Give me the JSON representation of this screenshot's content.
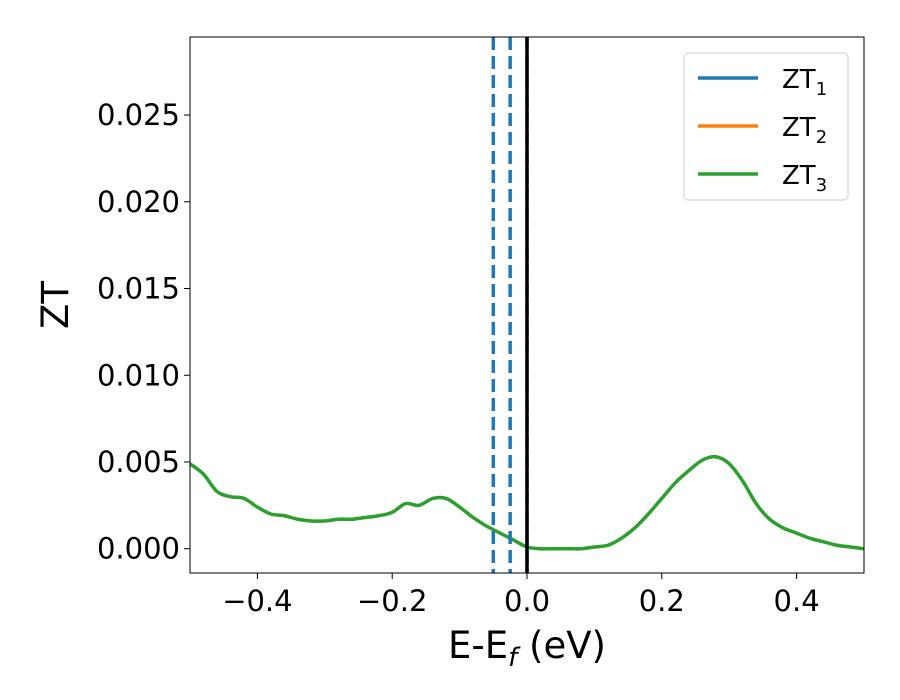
{
  "chart_data": {
    "type": "line",
    "xlabel": {
      "main": "E-E",
      "sub": "f",
      "suffix": " (eV)"
    },
    "ylabel": "ZT",
    "xlim": [
      -0.5,
      0.5
    ],
    "ylim": [
      -0.0014,
      0.0295
    ],
    "xticks": [
      -0.4,
      -0.2,
      0.0,
      0.2,
      0.4
    ],
    "xtick_labels": [
      "−0.4",
      "−0.2",
      "0.0",
      "0.2",
      "0.4"
    ],
    "yticks": [
      0.0,
      0.005,
      0.01,
      0.015,
      0.02,
      0.025
    ],
    "ytick_labels": [
      "0.000",
      "0.005",
      "0.010",
      "0.015",
      "0.020",
      "0.025"
    ],
    "grid": false,
    "legend_position": "top-right",
    "colors": {
      "s1": "#1f77b4",
      "s2": "#ff7f0e",
      "s3": "#2ca02c",
      "fermi": "#000000"
    },
    "vlines": [
      {
        "x": -0.05,
        "style": "dashed",
        "color": "#1f77b4"
      },
      {
        "x": -0.025,
        "style": "dashed",
        "color": "#1f77b4"
      },
      {
        "x": 0.0,
        "style": "dashed",
        "color": "#1f77b4"
      },
      {
        "x": 0.0,
        "style": "solid",
        "color": "#000000"
      }
    ],
    "series": [
      {
        "name": "ZT",
        "sub": "1",
        "color": "#1f77b4",
        "x": [],
        "y": []
      },
      {
        "name": "ZT",
        "sub": "2",
        "color": "#ff7f0e",
        "x": [],
        "y": []
      },
      {
        "name": "ZT",
        "sub": "3",
        "color": "#2ca02c",
        "x": [
          -0.5,
          -0.48,
          -0.46,
          -0.44,
          -0.42,
          -0.4,
          -0.38,
          -0.36,
          -0.34,
          -0.32,
          -0.3,
          -0.28,
          -0.26,
          -0.24,
          -0.22,
          -0.2,
          -0.18,
          -0.16,
          -0.14,
          -0.12,
          -0.1,
          -0.08,
          -0.06,
          -0.04,
          -0.02,
          0.0,
          0.02,
          0.04,
          0.06,
          0.08,
          0.1,
          0.12,
          0.14,
          0.16,
          0.18,
          0.2,
          0.22,
          0.24,
          0.26,
          0.28,
          0.3,
          0.32,
          0.34,
          0.36,
          0.38,
          0.4,
          0.42,
          0.44,
          0.46,
          0.48,
          0.5
        ],
        "y": [
          0.0049,
          0.0043,
          0.0033,
          0.003,
          0.0029,
          0.0024,
          0.002,
          0.0019,
          0.0017,
          0.0016,
          0.0016,
          0.0017,
          0.0017,
          0.0018,
          0.0019,
          0.0021,
          0.0026,
          0.0025,
          0.0029,
          0.0029,
          0.0024,
          0.0018,
          0.0013,
          0.0009,
          0.0005,
          0.0001,
          0.0,
          0.0,
          0.0,
          0.0,
          0.0001,
          0.0002,
          0.0006,
          0.0012,
          0.002,
          0.0029,
          0.0038,
          0.0045,
          0.0051,
          0.0053,
          0.0049,
          0.0039,
          0.0026,
          0.0017,
          0.0012,
          0.0009,
          0.0006,
          0.0004,
          0.0002,
          0.0001,
          0.0
        ]
      }
    ]
  }
}
